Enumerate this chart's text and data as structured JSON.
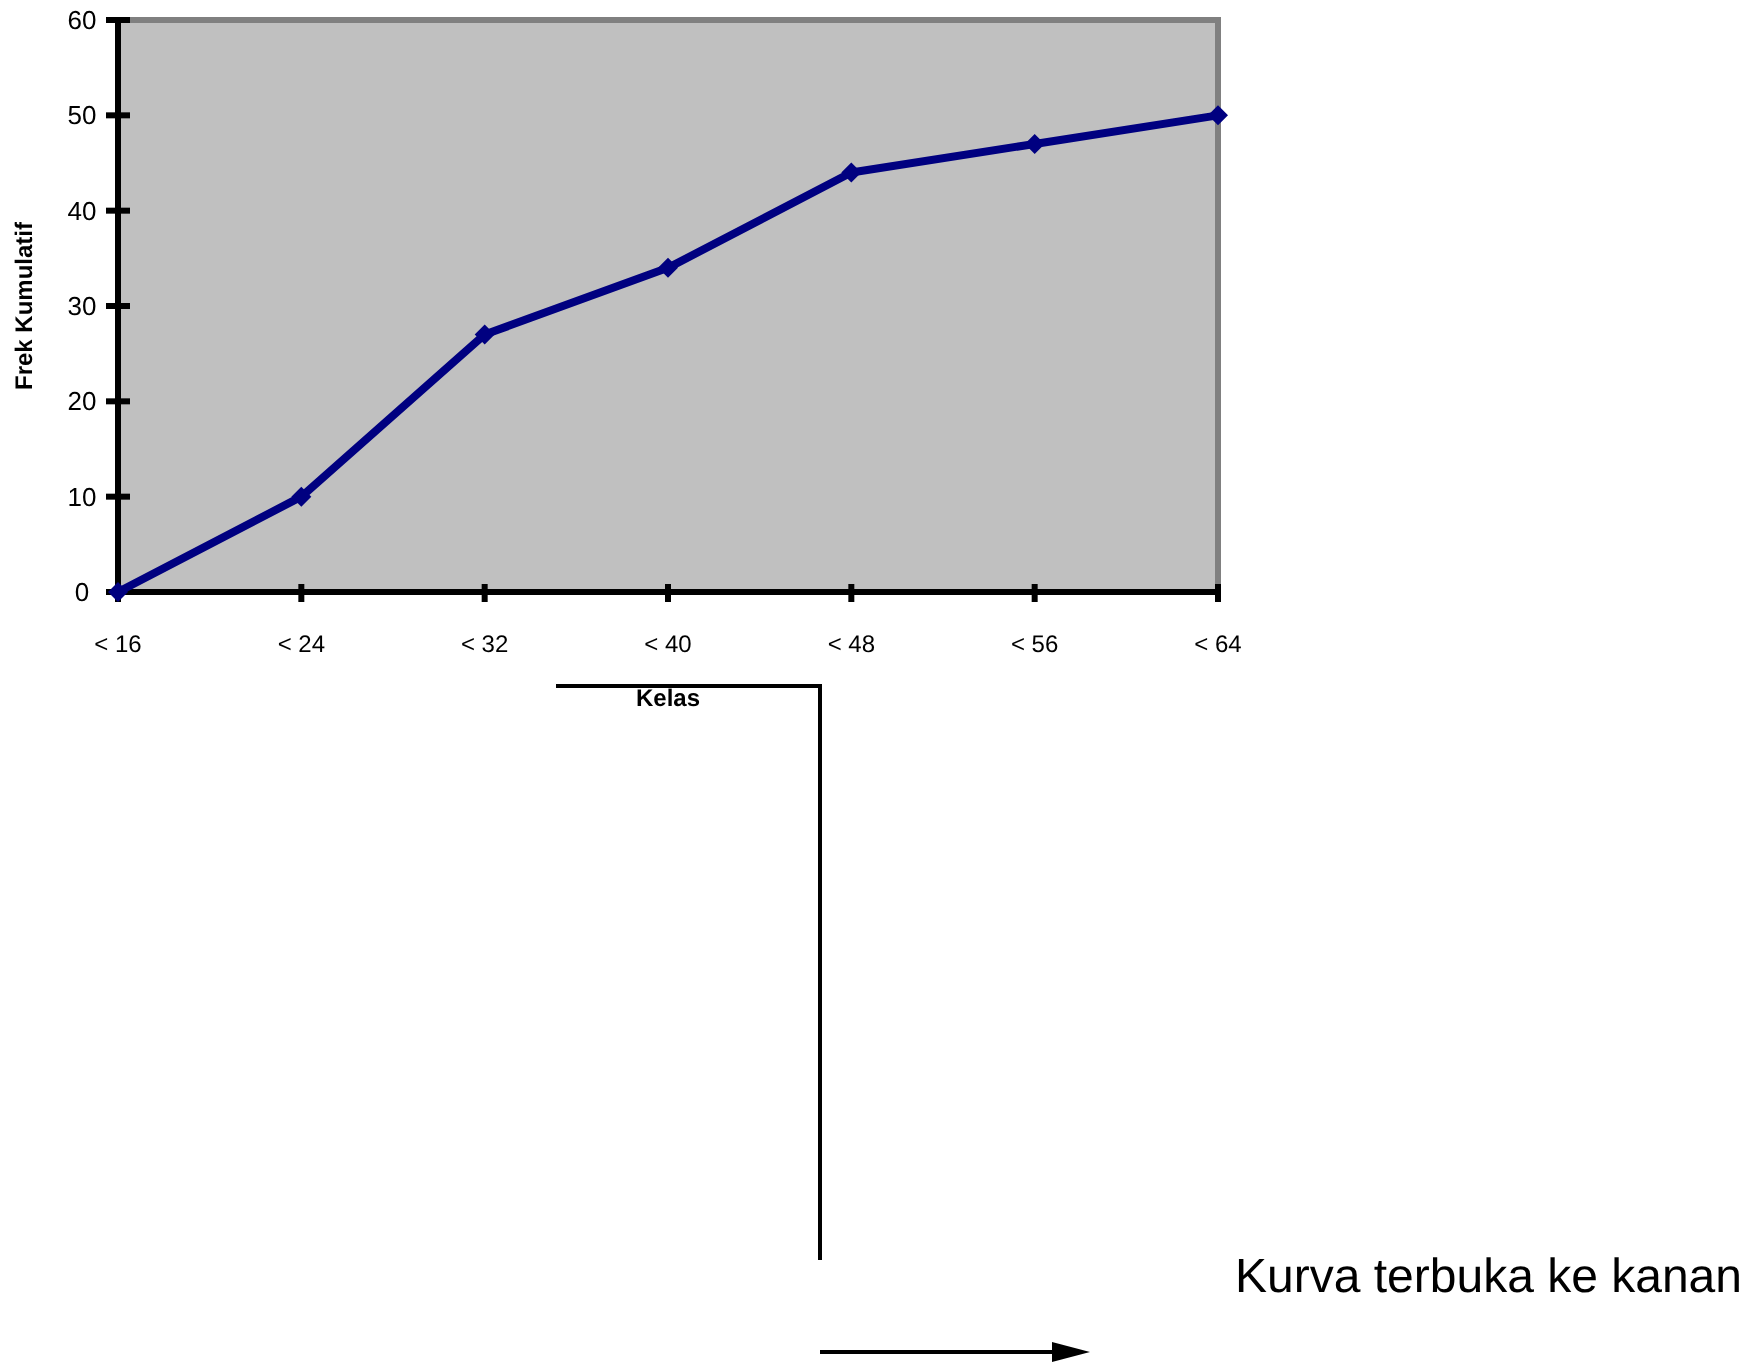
{
  "chart_data": {
    "type": "line",
    "xlabel": "Kelas",
    "ylabel": "Frek Kumulatif",
    "categories": [
      "< 16",
      "< 24",
      "< 32",
      "< 40",
      "< 48",
      "< 56",
      "< 64"
    ],
    "series": [
      {
        "color": "#000080",
        "values": [
          0,
          10,
          27,
          34,
          44,
          47,
          50
        ]
      }
    ],
    "ylim": [
      0,
      60
    ],
    "yticks": [
      0,
      10,
      20,
      30,
      40,
      50,
      60
    ],
    "grid": false,
    "marker": "diamond",
    "line_style": "solid",
    "annotations": [
      "Kurva terbuka ke kanan"
    ]
  }
}
